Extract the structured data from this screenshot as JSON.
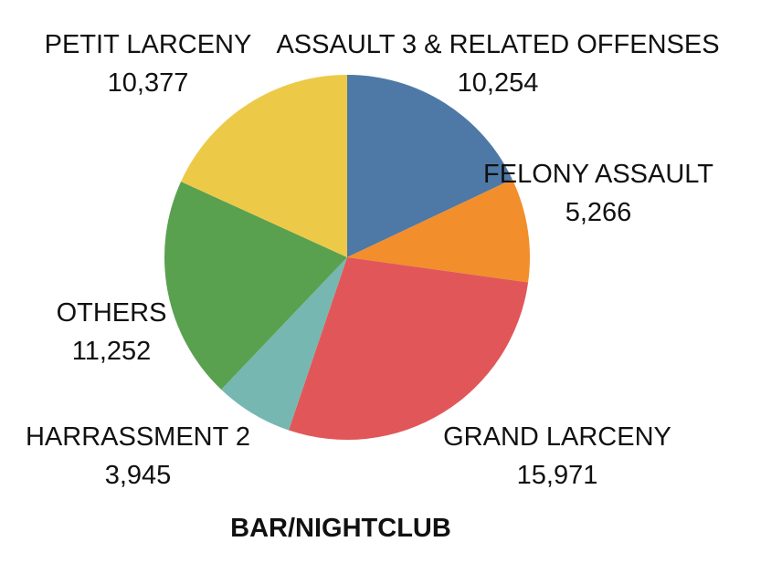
{
  "chart_data": {
    "type": "pie",
    "caption": "BAR/NIGHTCLUB",
    "start": "12 o'clock",
    "direction": "clockwise",
    "slices": [
      {
        "label": "ASSAULT 3 & RELATED OFFENSES",
        "value": 10254,
        "value_label": "10,254",
        "color": "#4e79a7"
      },
      {
        "label": "FELONY ASSAULT",
        "value": 5266,
        "value_label": "5,266",
        "color": "#f28e2b"
      },
      {
        "label": "GRAND LARCENY",
        "value": 15971,
        "value_label": "15,971",
        "color": "#e15759"
      },
      {
        "label": "HARRASSMENT 2",
        "value": 3945,
        "value_label": "3,945",
        "color": "#76b7b2"
      },
      {
        "label": "OTHERS",
        "value": 11252,
        "value_label": "11,252",
        "color": "#59a14f"
      },
      {
        "label": "PETIT LARCENY",
        "value": 10377,
        "value_label": "10,377",
        "color": "#edc948"
      }
    ]
  }
}
